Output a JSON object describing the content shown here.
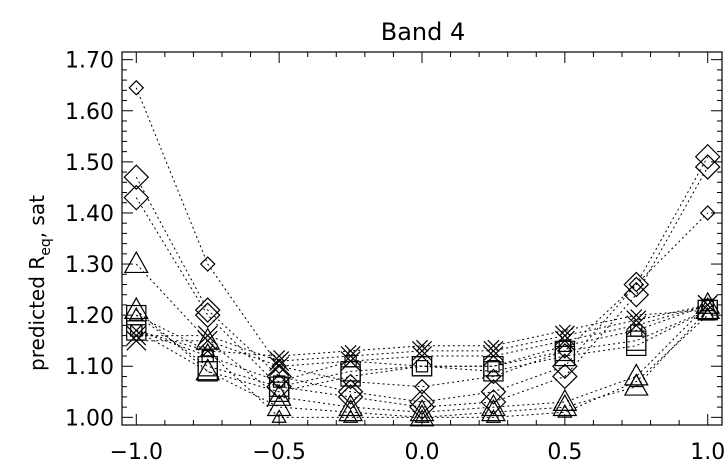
{
  "chart_data": {
    "type": "scatter",
    "title": "Band 4",
    "ylabel_main": "predicted R",
    "ylabel_sub": "eq",
    "ylabel_tail": ", sat",
    "xlabel": "",
    "xlim": [
      -1.05,
      1.05
    ],
    "ylim": [
      0.985,
      1.715
    ],
    "xticks": [
      -1.0,
      -0.5,
      0.0,
      0.5,
      1.0
    ],
    "xtick_labels": [
      "−1.0",
      "−0.5",
      "0.0",
      "0.5",
      "1.0"
    ],
    "xminor": [
      -0.9,
      -0.8,
      -0.7,
      -0.6,
      -0.4,
      -0.3,
      -0.2,
      -0.1,
      0.1,
      0.2,
      0.3,
      0.4,
      0.6,
      0.7,
      0.8,
      0.9
    ],
    "yticks": [
      1.0,
      1.1,
      1.2,
      1.3,
      1.4,
      1.5,
      1.6,
      1.7
    ],
    "ytick_labels": [
      "1.00",
      "1.10",
      "1.20",
      "1.30",
      "1.40",
      "1.50",
      "1.60",
      "1.70"
    ],
    "yminor": [
      1.02,
      1.04,
      1.06,
      1.08,
      1.12,
      1.14,
      1.16,
      1.18,
      1.22,
      1.24,
      1.26,
      1.28,
      1.32,
      1.34,
      1.36,
      1.38,
      1.42,
      1.44,
      1.46,
      1.48,
      1.52,
      1.54,
      1.56,
      1.58,
      1.62,
      1.64,
      1.66,
      1.68
    ],
    "grid": false,
    "line_style": "dotted",
    "x": [
      -1.0,
      -0.75,
      -0.5,
      -0.25,
      0.0,
      0.25,
      0.5,
      0.75,
      1.0
    ],
    "series": [
      {
        "marker": "diamond",
        "size": "small",
        "values": [
          1.645,
          1.3,
          1.1,
          1.07,
          1.06,
          1.08,
          1.13,
          1.26,
          1.4
        ]
      },
      {
        "marker": "diamond",
        "size": "large",
        "values": [
          1.47,
          1.21,
          1.08,
          1.05,
          1.03,
          1.05,
          1.1,
          1.26,
          1.51
        ]
      },
      {
        "marker": "diamond",
        "size": "large",
        "values": [
          1.43,
          1.2,
          1.06,
          1.04,
          1.02,
          1.03,
          1.08,
          1.24,
          1.49
        ]
      },
      {
        "marker": "triangle",
        "size": "large",
        "values": [
          1.3,
          1.15,
          1.04,
          1.02,
          1.01,
          1.02,
          1.03,
          1.08,
          1.22
        ]
      },
      {
        "marker": "triangle",
        "size": "large",
        "values": [
          1.21,
          1.09,
          1.02,
          1.01,
          1.0,
          1.01,
          1.02,
          1.06,
          1.21
        ]
      },
      {
        "marker": "triangle",
        "size": "small",
        "values": [
          1.2,
          1.13,
          1.0,
          1.0,
          1.0,
          1.0,
          1.01,
          1.07,
          1.2
        ]
      },
      {
        "marker": "square",
        "size": "large",
        "values": [
          1.2,
          1.1,
          1.06,
          1.09,
          1.1,
          1.1,
          1.13,
          1.15,
          1.21
        ]
      },
      {
        "marker": "square",
        "size": "large",
        "values": [
          1.17,
          1.09,
          1.05,
          1.08,
          1.1,
          1.09,
          1.12,
          1.14,
          1.21
        ]
      },
      {
        "marker": "square",
        "size": "small",
        "values": [
          1.17,
          1.12,
          1.07,
          1.11,
          1.1,
          1.1,
          1.14,
          1.17,
          1.22
        ]
      },
      {
        "marker": "x",
        "size": "large",
        "values": [
          1.16,
          1.16,
          1.11,
          1.12,
          1.13,
          1.13,
          1.16,
          1.19,
          1.22
        ]
      },
      {
        "marker": "x",
        "size": "large",
        "values": [
          1.15,
          1.15,
          1.1,
          1.11,
          1.12,
          1.12,
          1.15,
          1.18,
          1.22
        ]
      },
      {
        "marker": "x",
        "size": "small",
        "values": [
          1.17,
          1.13,
          1.12,
          1.13,
          1.14,
          1.14,
          1.17,
          1.2,
          1.21
        ]
      }
    ]
  }
}
